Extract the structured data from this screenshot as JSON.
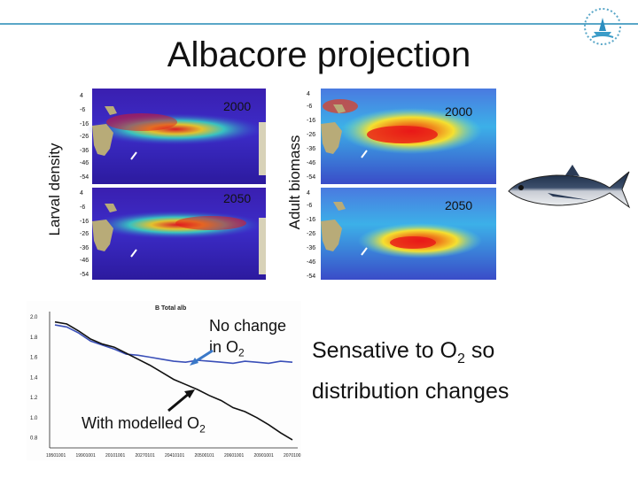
{
  "slide": {
    "title": "Albacore projection",
    "larval_label": "Larval density",
    "adult_label": "Adult biomass",
    "year_2000": "2000",
    "year_2050": "2050",
    "lat_ticks": [
      "4",
      "-6",
      "-16",
      "-26",
      "-36",
      "-46",
      "-54"
    ],
    "annotation_no_change_line1": "No change",
    "annotation_no_change_line2_prefix": "in O",
    "annotation_modelled_prefix": "With modelled O",
    "subscript_2": "2",
    "sensitive_prefix": "Sensative to O",
    "sensitive_suffix": " so",
    "sensitive_line2": "distribution changes",
    "colors": {
      "topline": "#5aa7c8",
      "map_background": "#3a1fb0",
      "land": "#b8ab78"
    }
  },
  "chart_data": {
    "type": "line",
    "title": "B Total alb",
    "xlabel": "",
    "ylabel": "",
    "ylim": [
      0.7,
      2.0
    ],
    "y_ticks": [
      "2.0",
      "1.8",
      "1.6",
      "1.4",
      "1.2",
      "1.0",
      "0.8"
    ],
    "x_tick_labels": [
      "19501001",
      "19901001",
      "20101001",
      "20270101",
      "20410101",
      "20500101",
      "20601001",
      "20901001",
      "20701001"
    ],
    "series": [
      {
        "name": "No change in O2",
        "color": "#3a4fb8",
        "values": [
          1.92,
          1.9,
          1.84,
          1.76,
          1.72,
          1.68,
          1.63,
          1.62,
          1.6,
          1.58,
          1.56,
          1.55,
          1.57,
          1.56,
          1.55,
          1.54,
          1.56,
          1.55,
          1.54,
          1.56,
          1.55
        ]
      },
      {
        "name": "With modelled O2",
        "color": "#111111",
        "values": [
          1.95,
          1.93,
          1.86,
          1.78,
          1.73,
          1.7,
          1.64,
          1.58,
          1.52,
          1.45,
          1.38,
          1.33,
          1.28,
          1.22,
          1.17,
          1.1,
          1.06,
          1.0,
          0.93,
          0.85,
          0.78
        ]
      }
    ]
  }
}
